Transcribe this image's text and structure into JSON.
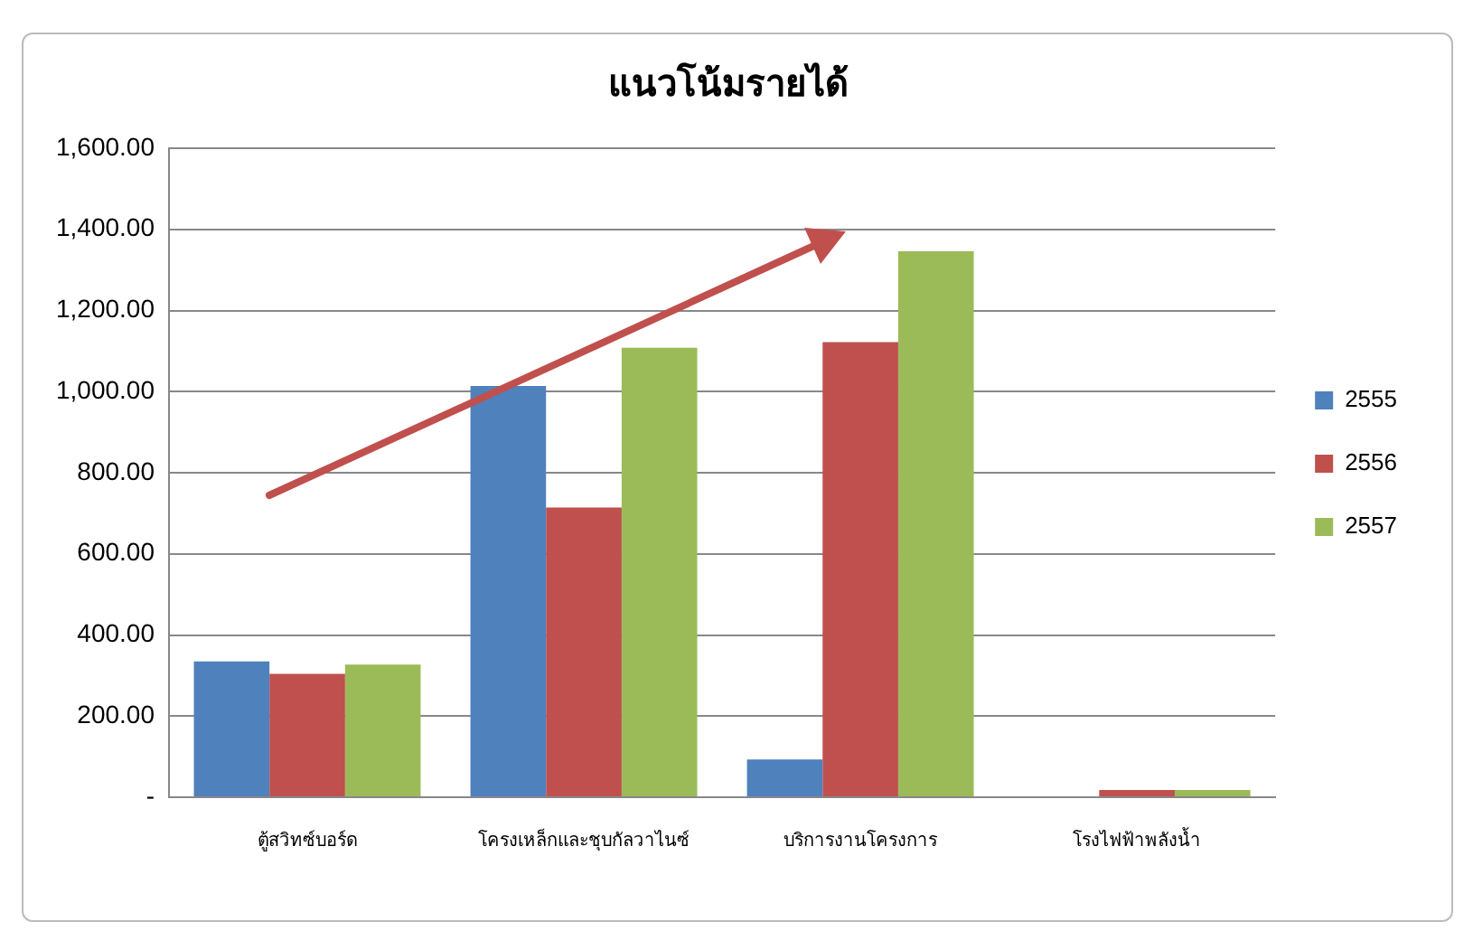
{
  "chart_data": {
    "type": "bar",
    "title": "แนวโน้มรายได้",
    "categories": [
      "ตู้สวิทซ์บอร์ด",
      "โครงเหล็กและชุบกัลวาไนซ์",
      "บริการงานโครงการ",
      "โรงไฟฟ้าพลังน้ำ"
    ],
    "series": [
      {
        "name": "2555",
        "color": "#4f81bd",
        "values": [
          335,
          1014,
          93,
          0
        ]
      },
      {
        "name": "2556",
        "color": "#c0504d",
        "values": [
          304,
          714,
          1122,
          18
        ]
      },
      {
        "name": "2557",
        "color": "#9bbb59",
        "values": [
          327,
          1108,
          1346,
          18
        ]
      }
    ],
    "ylim": [
      0,
      1600
    ],
    "yticks": [
      {
        "value": 0,
        "label": "-"
      },
      {
        "value": 200,
        "label": "200.00"
      },
      {
        "value": 400,
        "label": "400.00"
      },
      {
        "value": 600,
        "label": "600.00"
      },
      {
        "value": 800,
        "label": "800.00"
      },
      {
        "value": 1000,
        "label": "1,000.00"
      },
      {
        "value": 1200,
        "label": "1,200.00"
      },
      {
        "value": 1400,
        "label": "1,400.00"
      },
      {
        "value": 1600,
        "label": "1,600.00"
      }
    ],
    "grid": "y",
    "legend": "right"
  }
}
